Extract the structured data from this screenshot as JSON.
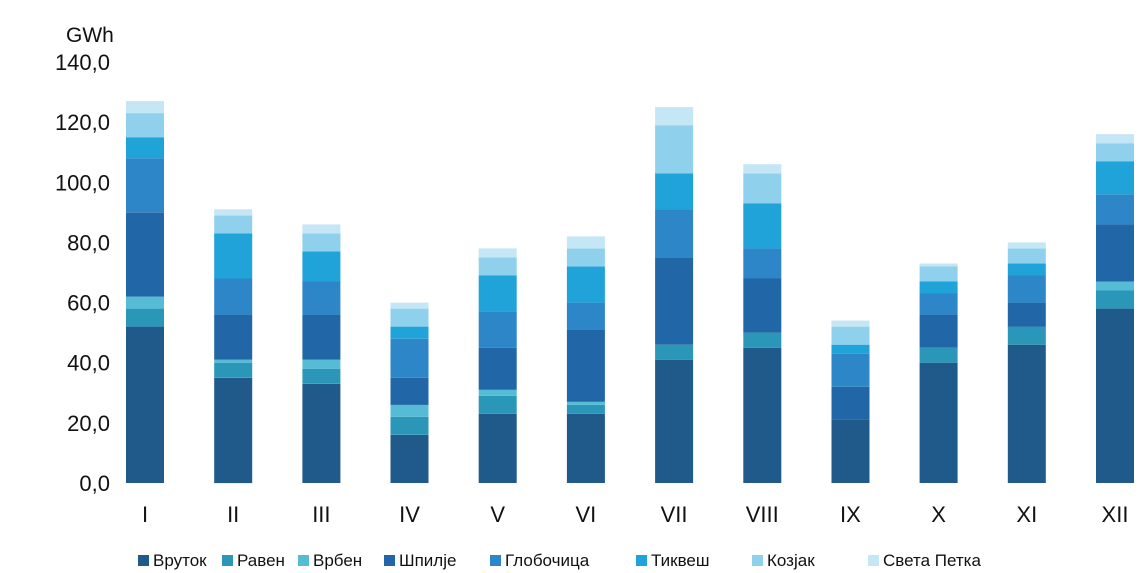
{
  "chart_data": {
    "type": "bar",
    "stacked": true,
    "ylabel": "GWh",
    "ylim": [
      0,
      140
    ],
    "yticks": [
      "0,0",
      "20,0",
      "40,0",
      "60,0",
      "80,0",
      "100,0",
      "120,0",
      "140,0"
    ],
    "categories": [
      "I",
      "II",
      "III",
      "IV",
      "V",
      "VI",
      "VII",
      "VIII",
      "IX",
      "X",
      "XI",
      "XII"
    ],
    "legend_position": "bottom",
    "grid": false,
    "series": [
      {
        "name": "Вруток",
        "color": "#1f5a8a",
        "values": [
          52,
          35,
          33,
          16,
          23,
          23,
          41,
          45,
          21,
          40,
          46,
          58
        ]
      },
      {
        "name": "Равен",
        "color": "#2a96b8",
        "values": [
          6,
          5,
          5,
          6,
          6,
          3,
          5,
          5,
          0,
          5,
          6,
          6
        ]
      },
      {
        "name": "Врбен",
        "color": "#56bcd6",
        "values": [
          4,
          1,
          3,
          4,
          2,
          1,
          0,
          0,
          0,
          0,
          0,
          3
        ]
      },
      {
        "name": "Шпилје",
        "color": "#2166a6",
        "values": [
          28,
          15,
          15,
          9,
          14,
          24,
          29,
          18,
          11,
          11,
          8,
          19
        ]
      },
      {
        "name": "Глобочица",
        "color": "#2c86c8",
        "values": [
          18,
          12,
          11,
          13,
          12,
          9,
          16,
          10,
          11,
          7,
          9,
          10
        ]
      },
      {
        "name": "Тиквеш",
        "color": "#1fa3d9",
        "values": [
          7,
          15,
          10,
          4,
          12,
          12,
          12,
          15,
          3,
          4,
          4,
          11
        ]
      },
      {
        "name": "Козјак",
        "color": "#8fd1ec",
        "values": [
          8,
          6,
          6,
          6,
          6,
          6,
          16,
          10,
          6,
          5,
          5,
          6
        ]
      },
      {
        "name": "Света Петка",
        "color": "#c4e6f5",
        "values": [
          4,
          2,
          3,
          2,
          3,
          4,
          6,
          3,
          2,
          1,
          2,
          3
        ]
      }
    ]
  }
}
